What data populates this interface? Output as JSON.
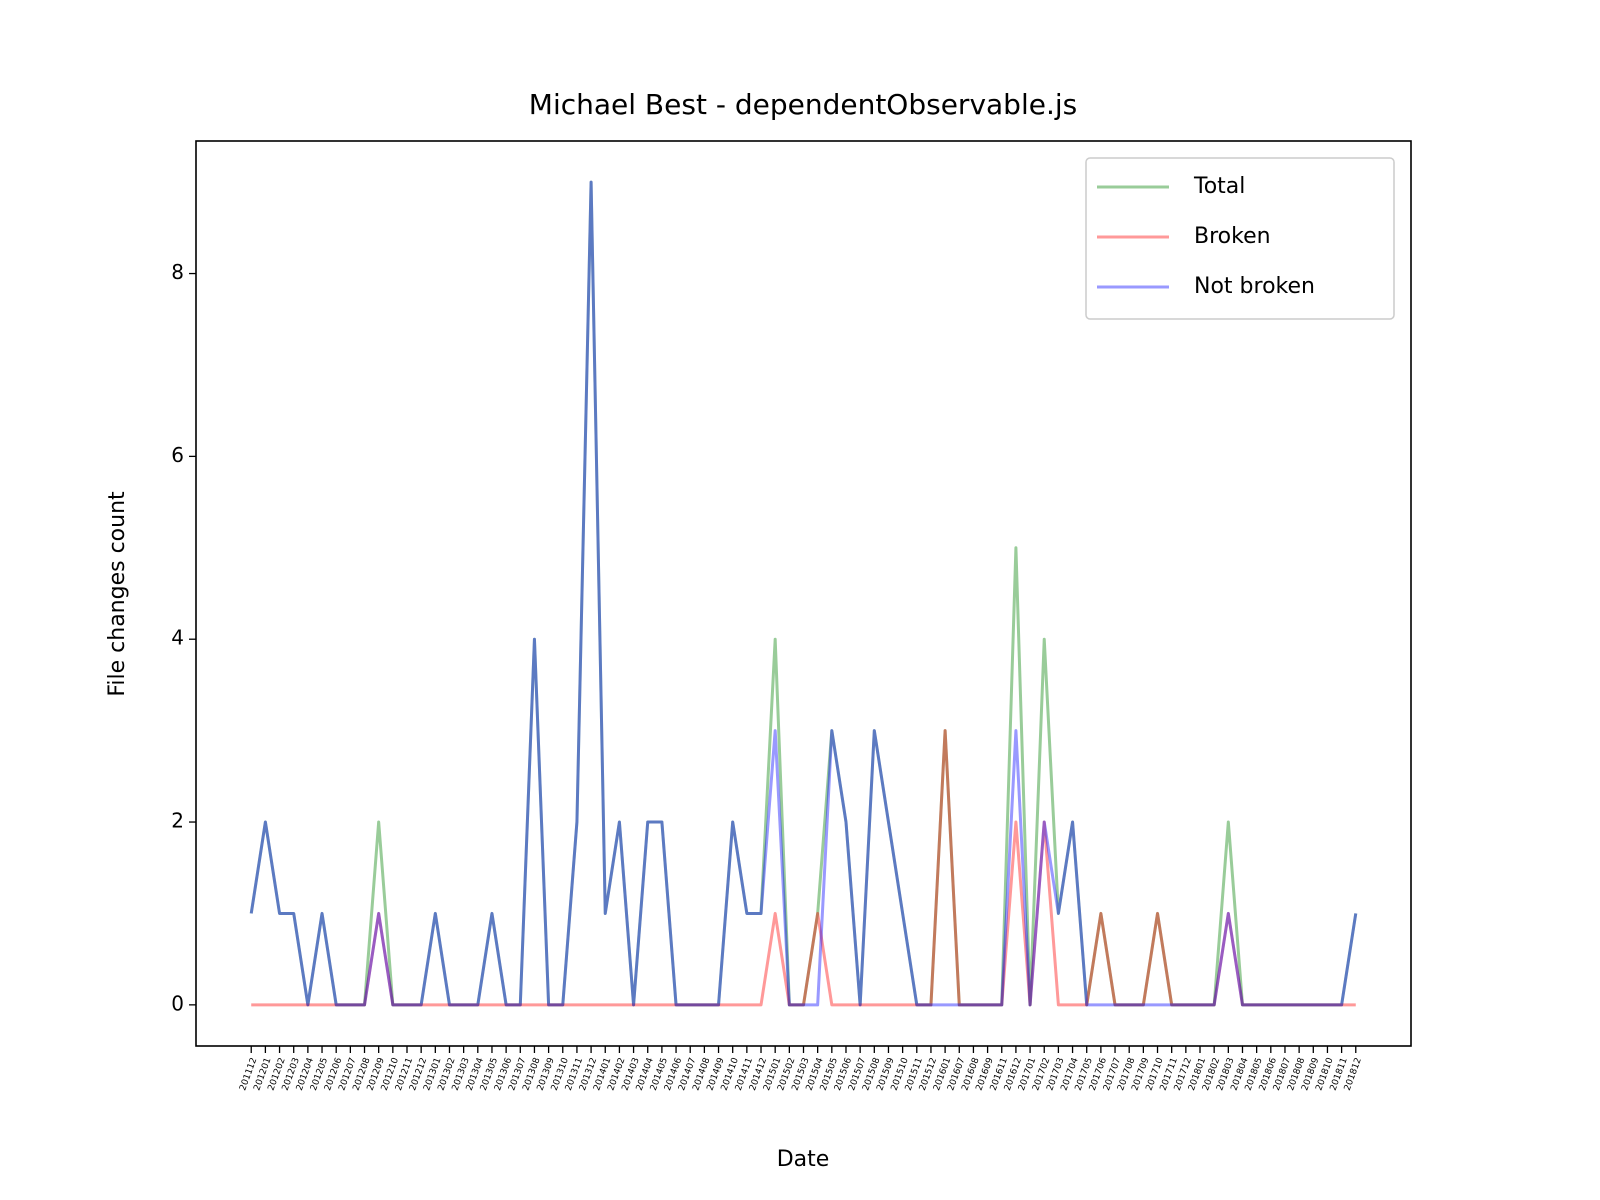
{
  "chart_data": {
    "type": "line",
    "title": "Michael Best - dependentObservable.js",
    "xlabel": "Date",
    "ylabel": "File changes count",
    "categories": [
      "201112",
      "201201",
      "201202",
      "201203",
      "201204",
      "201205",
      "201206",
      "201207",
      "201208",
      "201209",
      "201210",
      "201211",
      "201212",
      "201301",
      "201302",
      "201303",
      "201304",
      "201305",
      "201306",
      "201307",
      "201308",
      "201309",
      "201310",
      "201311",
      "201312",
      "201401",
      "201402",
      "201403",
      "201404",
      "201405",
      "201406",
      "201407",
      "201408",
      "201409",
      "201410",
      "201411",
      "201412",
      "201501",
      "201502",
      "201503",
      "201504",
      "201505",
      "201506",
      "201507",
      "201508",
      "201509",
      "201510",
      "201511",
      "201512",
      "201601",
      "201607",
      "201608",
      "201609",
      "201611",
      "201612",
      "201701",
      "201702",
      "201703",
      "201704",
      "201705",
      "201706",
      "201707",
      "201708",
      "201709",
      "201710",
      "201711",
      "201712",
      "201801",
      "201802",
      "201803",
      "201804",
      "201805",
      "201806",
      "201807",
      "201808",
      "201809",
      "201810",
      "201811",
      "201812"
    ],
    "series": [
      {
        "name": "Total",
        "color": "#008000",
        "values": [
          1,
          2,
          1,
          1,
          0,
          1,
          0,
          0,
          0,
          2,
          0,
          0,
          0,
          1,
          0,
          0,
          0,
          1,
          0,
          0,
          4,
          0,
          0,
          2,
          9,
          1,
          2,
          0,
          2,
          2,
          0,
          0,
          0,
          0,
          2,
          1,
          1,
          4,
          0,
          0,
          1,
          3,
          2,
          0,
          3,
          2,
          1,
          0,
          0,
          3,
          0,
          0,
          0,
          0,
          5,
          0,
          4,
          1,
          2,
          0,
          1,
          0,
          0,
          0,
          1,
          0,
          0,
          0,
          0,
          2,
          0,
          0,
          0,
          0,
          0,
          0,
          0,
          0,
          1
        ]
      },
      {
        "name": "Broken",
        "color": "#ff0000",
        "values": [
          0,
          0,
          0,
          0,
          0,
          0,
          0,
          0,
          0,
          1,
          0,
          0,
          0,
          0,
          0,
          0,
          0,
          0,
          0,
          0,
          0,
          0,
          0,
          0,
          0,
          0,
          0,
          0,
          0,
          0,
          0,
          0,
          0,
          0,
          0,
          0,
          0,
          1,
          0,
          0,
          1,
          0,
          0,
          0,
          0,
          0,
          0,
          0,
          0,
          3,
          0,
          0,
          0,
          0,
          2,
          0,
          2,
          0,
          0,
          0,
          1,
          0,
          0,
          0,
          1,
          0,
          0,
          0,
          0,
          1,
          0,
          0,
          0,
          0,
          0,
          0,
          0,
          0,
          0
        ]
      },
      {
        "name": "Not broken",
        "color": "#0000ff",
        "values": [
          1,
          2,
          1,
          1,
          0,
          1,
          0,
          0,
          0,
          1,
          0,
          0,
          0,
          1,
          0,
          0,
          0,
          1,
          0,
          0,
          4,
          0,
          0,
          2,
          9,
          1,
          2,
          0,
          2,
          2,
          0,
          0,
          0,
          0,
          2,
          1,
          1,
          3,
          0,
          0,
          0,
          3,
          2,
          0,
          3,
          2,
          1,
          0,
          0,
          0,
          0,
          0,
          0,
          0,
          3,
          0,
          2,
          1,
          2,
          0,
          0,
          0,
          0,
          0,
          0,
          0,
          0,
          0,
          0,
          1,
          0,
          0,
          0,
          0,
          0,
          0,
          0,
          0,
          1
        ]
      }
    ],
    "ylim": [
      -0.45,
      9.45
    ],
    "yticks": [
      0,
      2,
      4,
      6,
      8
    ],
    "legend": "upper right"
  }
}
